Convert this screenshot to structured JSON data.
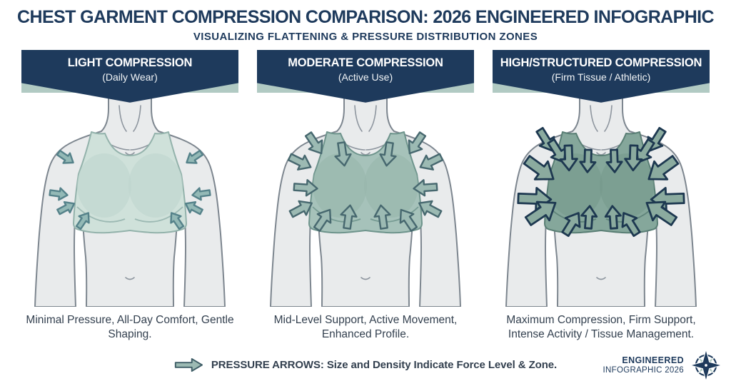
{
  "header": {
    "title": "CHEST GARMENT COMPRESSION COMPARISON: 2026 ENGINEERED INFOGRAPHIC",
    "subtitle": "VISUALIZING FLATTENING & PRESSURE DISTRIBUTION ZONES"
  },
  "panels": [
    {
      "banner_title": "LIGHT COMPRESSION",
      "banner_subtitle": "(Daily Wear)",
      "caption": "Minimal Pressure, All-Day Comfort, Gentle Shaping.",
      "arrow_level": "light",
      "colors": {
        "garment": "#cfe1da",
        "garment_shade": "#bed5ce",
        "garment_outline": "#93b2ab",
        "arrow_fill": "#93b9b6",
        "arrow_outline": "#55828a"
      }
    },
    {
      "banner_title": "MODERATE COMPRESSION",
      "banner_subtitle": "(Active Use)",
      "caption": "Mid-Level Support, Active Movement, Enhanced Profile.",
      "arrow_level": "moderate",
      "colors": {
        "garment": "#a6c2ba",
        "garment_shade": "#97b5ac",
        "garment_outline": "#6e948c",
        "arrow_fill": "#9cbab3",
        "arrow_outline": "#47686f"
      }
    },
    {
      "banner_title": "HIGH/STRUCTURED COMPRESSION",
      "banner_subtitle": "(Firm Tissue / Athletic)",
      "caption": "Maximum Compression, Firm Support, Intense Activity / Tissue Management.",
      "arrow_level": "high",
      "colors": {
        "garment": "#85a79b",
        "garment_shade": "#76998c",
        "garment_outline": "#597e74",
        "arrow_fill": "#8bab9f",
        "arrow_outline": "#1d3850"
      }
    }
  ],
  "legend": {
    "label": "PRESSURE ARROWS: Size and Density Indicate Force Level & Zone.",
    "icon": "pressure-arrow-icon"
  },
  "branding": {
    "line1": "ENGINEERED",
    "line2": "INFOGRAPHIC 2026",
    "icon": "compass-rose-icon"
  },
  "colors": {
    "navy": "#1e3a5c",
    "banner_sage": "#b1cac3",
    "skin": "#e9ebec",
    "skin_outline": "#7d868f",
    "detail_line": "#8d959e",
    "text_dark": "#33404f",
    "background": "#ffffff"
  }
}
